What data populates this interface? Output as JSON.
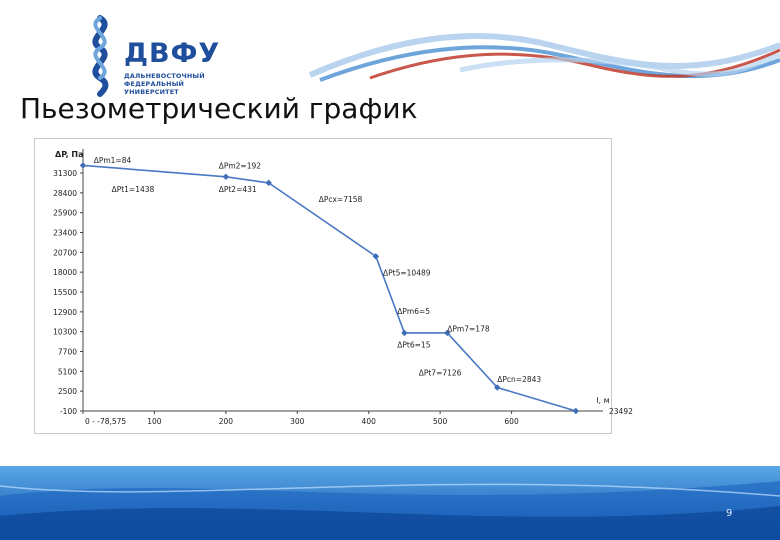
{
  "header": {
    "logo_text": "ДВФУ",
    "logo_sub_lines": [
      "ДАЛЬНЕВОСТОЧНЫЙ",
      "ФЕДЕРАЛЬНЫЙ",
      "УНИВЕРСИТЕТ"
    ],
    "colors": {
      "logo_blue": "#1f4e9c",
      "swoosh_blue": "#4a8fd1",
      "swoosh_red": "#c0392b"
    }
  },
  "slide": {
    "title": "Пьезометрический график",
    "page_number": "9"
  },
  "chart_data": {
    "type": "line",
    "ylabel": "ΔP, Па",
    "xlabel": "l, м",
    "y_ticks": [
      "31300",
      "28400",
      "25900",
      "23400",
      "20700",
      "18000",
      "15500",
      "12900",
      "10300",
      "7700",
      "5100",
      "2500",
      "-100"
    ],
    "x_ticks": [
      "0",
      "100",
      "200",
      "300",
      "400",
      "500",
      "600"
    ],
    "x_start_label": "-78,575",
    "x_end_label": "23492",
    "xlim": [
      0,
      700
    ],
    "ylim": [
      -100,
      31300
    ],
    "series": [
      {
        "values": [
          {
            "x": 0,
            "y": 32300
          },
          {
            "x": 200,
            "y": 30800
          },
          {
            "x": 260,
            "y": 30000
          },
          {
            "x": 410,
            "y": 20300
          },
          {
            "x": 450,
            "y": 10200
          },
          {
            "x": 510,
            "y": 10200
          },
          {
            "x": 580,
            "y": 3000
          },
          {
            "x": 690,
            "y": -100
          }
        ]
      }
    ],
    "annotations": [
      {
        "text": "ΔPm1=84",
        "x": 15,
        "y": 32600
      },
      {
        "text": "ΔPt1=1438",
        "x": 40,
        "y": 28800
      },
      {
        "text": "ΔPm2=192",
        "x": 190,
        "y": 31900
      },
      {
        "text": "ΔPt2=431",
        "x": 190,
        "y": 28800
      },
      {
        "text": "ΔPcx=7158",
        "x": 330,
        "y": 27500
      },
      {
        "text": "ΔPt5=10489",
        "x": 420,
        "y": 17800
      },
      {
        "text": "ΔPm6=5",
        "x": 440,
        "y": 12700
      },
      {
        "text": "ΔPm7=178",
        "x": 510,
        "y": 10400
      },
      {
        "text": "ΔPt6=15",
        "x": 440,
        "y": 8300
      },
      {
        "text": "ΔPt7=7126",
        "x": 470,
        "y": 4600
      },
      {
        "text": "ΔPcn=2843",
        "x": 580,
        "y": 3700
      }
    ]
  }
}
